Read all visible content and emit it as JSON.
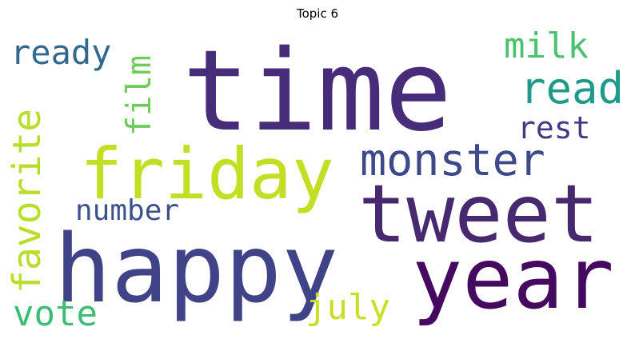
{
  "title": "Topic 6",
  "words": [
    {
      "id": "time",
      "text": "time",
      "color": "#472c7a",
      "rotated": false
    },
    {
      "id": "happy",
      "text": "happy",
      "color": "#404387",
      "rotated": false
    },
    {
      "id": "tweet",
      "text": "tweet",
      "color": "#46296e",
      "rotated": false
    },
    {
      "id": "year",
      "text": "year",
      "color": "#450a5f",
      "rotated": false
    },
    {
      "id": "friday",
      "text": "friday",
      "color": "#c2df23",
      "rotated": false
    },
    {
      "id": "monster",
      "text": "monster",
      "color": "#3e4989",
      "rotated": false
    },
    {
      "id": "read",
      "text": "read",
      "color": "#1f9a8a",
      "rotated": false
    },
    {
      "id": "milk",
      "text": "milk",
      "color": "#4ac16d",
      "rotated": false
    },
    {
      "id": "rest",
      "text": "rest",
      "color": "#443983",
      "rotated": false
    },
    {
      "id": "ready",
      "text": "ready",
      "color": "#31688e",
      "rotated": false
    },
    {
      "id": "film",
      "text": "film",
      "color": "#6ccd5a",
      "rotated": true
    },
    {
      "id": "favorite",
      "text": "favorite",
      "color": "#b8de29",
      "rotated": true
    },
    {
      "id": "number",
      "text": "number",
      "color": "#3b528b",
      "rotated": false
    },
    {
      "id": "vote",
      "text": "vote",
      "color": "#3dbc74",
      "rotated": false
    },
    {
      "id": "july",
      "text": "july",
      "color": "#c8e020",
      "rotated": false
    }
  ]
}
